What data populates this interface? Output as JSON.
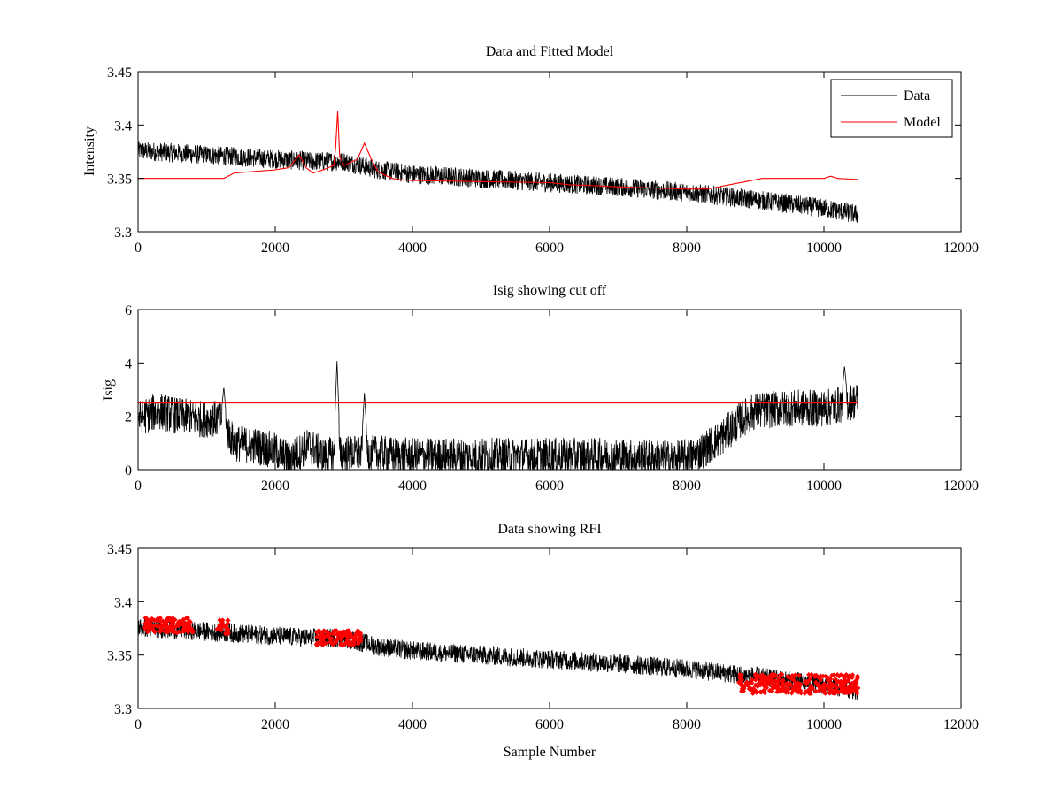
{
  "chart_data": [
    {
      "type": "line",
      "title": "Data and Fitted Model",
      "xlabel": "",
      "ylabel": "Intensity",
      "xlim": [
        0,
        12000
      ],
      "ylim": [
        3.3,
        3.45
      ],
      "xticks": [
        0,
        2000,
        4000,
        6000,
        8000,
        10000,
        12000
      ],
      "xtick_labels": [
        "0",
        "2000",
        "4000",
        "6000",
        "8000",
        "10000",
        "12000"
      ],
      "yticks": [
        3.3,
        3.35,
        3.4,
        3.45
      ],
      "ytick_labels": [
        "3.3",
        "3.35",
        "3.4",
        "3.45"
      ],
      "grid": false,
      "legend": {
        "location": "top-right",
        "entries": [
          "Data",
          "Model"
        ]
      },
      "series": [
        {
          "name": "Data",
          "color": "#000000",
          "style": "noisy-line",
          "noise_amplitude": 0.009,
          "x": [
            0,
            500,
            1000,
            1500,
            2000,
            2500,
            3000,
            3500,
            4000,
            5000,
            6000,
            7000,
            8000,
            9000,
            10000,
            10500
          ],
          "y": [
            3.376,
            3.374,
            3.372,
            3.37,
            3.368,
            3.366,
            3.366,
            3.358,
            3.354,
            3.35,
            3.346,
            3.342,
            3.337,
            3.33,
            3.322,
            3.316
          ]
        },
        {
          "name": "Model",
          "color": "#ff0000",
          "style": "line",
          "x": [
            0,
            1250,
            1400,
            1600,
            2000,
            2200,
            2350,
            2450,
            2550,
            2700,
            2850,
            2880,
            2910,
            2940,
            3000,
            3200,
            3300,
            3400,
            3500,
            3700,
            3800,
            4000,
            5000,
            6000,
            6300,
            6700,
            7000,
            8000,
            8300,
            8700,
            9100,
            9500,
            10000,
            10100,
            10200,
            10500
          ],
          "y": [
            3.35,
            3.35,
            3.355,
            3.356,
            3.358,
            3.36,
            3.372,
            3.36,
            3.355,
            3.358,
            3.362,
            3.378,
            3.413,
            3.37,
            3.362,
            3.368,
            3.383,
            3.368,
            3.356,
            3.35,
            3.349,
            3.348,
            3.347,
            3.346,
            3.344,
            3.343,
            3.342,
            3.34,
            3.34,
            3.345,
            3.35,
            3.35,
            3.35,
            3.352,
            3.35,
            3.349
          ]
        }
      ]
    },
    {
      "type": "line",
      "title": "Isig showing cut off",
      "xlabel": "",
      "ylabel": "Isig",
      "xlim": [
        0,
        12000
      ],
      "ylim": [
        0,
        6
      ],
      "xticks": [
        0,
        2000,
        4000,
        6000,
        8000,
        10000,
        12000
      ],
      "xtick_labels": [
        "0",
        "2000",
        "4000",
        "6000",
        "8000",
        "10000",
        "12000"
      ],
      "yticks": [
        0,
        2,
        4,
        6
      ],
      "ytick_labels": [
        "0",
        "2",
        "4",
        "6"
      ],
      "grid": false,
      "series": [
        {
          "name": "Isig",
          "color": "#000000",
          "style": "noisy-line",
          "noise_amplitude": 0.7,
          "x": [
            0,
            300,
            600,
            900,
            1200,
            1400,
            1700,
            2000,
            2200,
            2500,
            2700,
            3000,
            3400,
            4000,
            5000,
            6000,
            7000,
            7800,
            8100,
            8500,
            8800,
            9000,
            9500,
            10000,
            10500
          ],
          "y": [
            1.9,
            2.2,
            2.0,
            1.9,
            1.9,
            1.0,
            0.9,
            0.7,
            0.4,
            0.9,
            0.5,
            0.6,
            0.6,
            0.5,
            0.5,
            0.5,
            0.5,
            0.4,
            0.5,
            1.2,
            1.9,
            2.2,
            2.3,
            2.3,
            2.6
          ],
          "spikes": [
            {
              "x": 2900,
              "y": 4.1
            },
            {
              "x": 3300,
              "y": 2.9
            },
            {
              "x": 1250,
              "y": 3.1
            },
            {
              "x": 10300,
              "y": 3.9
            }
          ]
        },
        {
          "name": "Cut off",
          "color": "#ff0000",
          "style": "line",
          "x": [
            0,
            10500
          ],
          "y": [
            2.5,
            2.5
          ]
        }
      ]
    },
    {
      "type": "line",
      "title": "Data showing RFI",
      "xlabel": "Sample Number",
      "ylabel": "",
      "xlim": [
        0,
        12000
      ],
      "ylim": [
        3.3,
        3.45
      ],
      "xticks": [
        0,
        2000,
        4000,
        6000,
        8000,
        10000,
        12000
      ],
      "xtick_labels": [
        "0",
        "2000",
        "4000",
        "6000",
        "8000",
        "10000",
        "12000"
      ],
      "yticks": [
        3.3,
        3.35,
        3.4,
        3.45
      ],
      "ytick_labels": [
        "3.3",
        "3.35",
        "3.4",
        "3.45"
      ],
      "grid": false,
      "series": [
        {
          "name": "Data",
          "color": "#000000",
          "style": "noisy-line",
          "noise_amplitude": 0.009,
          "x": [
            0,
            500,
            1000,
            1500,
            2000,
            2500,
            3000,
            3500,
            4000,
            5000,
            6000,
            7000,
            8000,
            9000,
            10000,
            10500
          ],
          "y": [
            3.376,
            3.374,
            3.372,
            3.37,
            3.368,
            3.366,
            3.366,
            3.358,
            3.354,
            3.35,
            3.346,
            3.342,
            3.337,
            3.33,
            3.322,
            3.316
          ]
        },
        {
          "name": "RFI",
          "color": "#ff0000",
          "style": "markers",
          "segments": [
            {
              "x_start": 100,
              "x_end": 800,
              "y_center": 3.378,
              "spread": 0.014
            },
            {
              "x_start": 1150,
              "x_end": 1320,
              "y_center": 3.377,
              "spread": 0.014
            },
            {
              "x_start": 2600,
              "x_end": 3250,
              "y_center": 3.366,
              "spread": 0.014
            },
            {
              "x_start": 8750,
              "x_end": 10500,
              "y_center": 3.323,
              "spread": 0.018
            }
          ]
        }
      ]
    }
  ]
}
